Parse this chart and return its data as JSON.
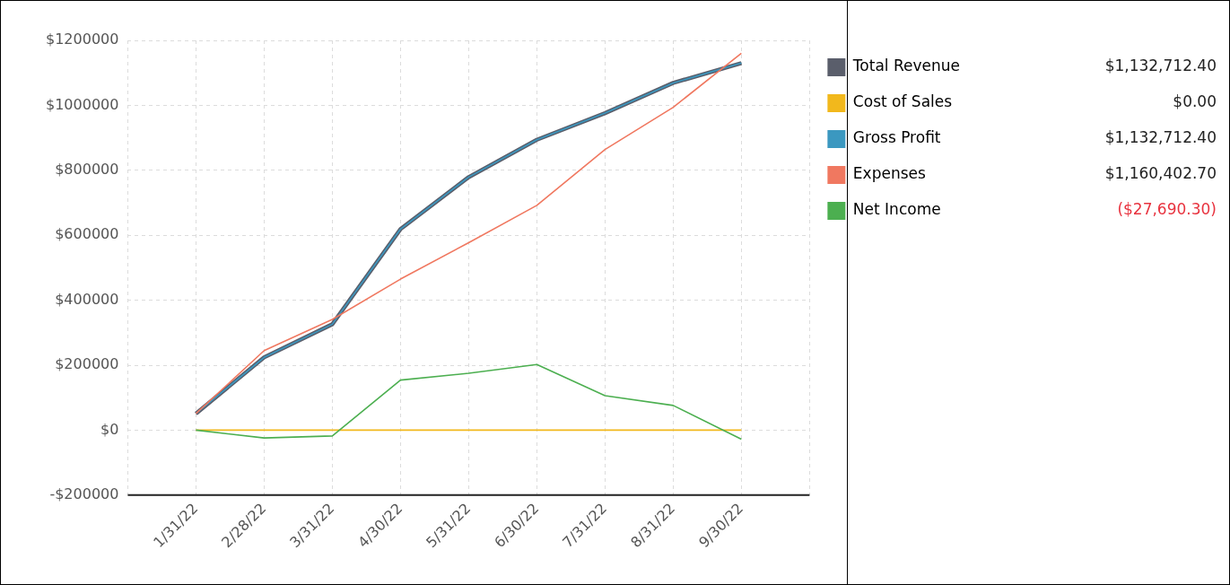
{
  "chart_data": {
    "type": "line",
    "categories": [
      "1/31/22",
      "2/28/22",
      "3/31/22",
      "4/30/22",
      "5/31/22",
      "6/30/22",
      "7/31/22",
      "8/31/22",
      "9/30/22"
    ],
    "series": [
      {
        "name": "Total Revenue",
        "color": "#5a5e6b",
        "values": [
          51000,
          224000,
          326000,
          619000,
          779000,
          894000,
          976000,
          1069000,
          1130000
        ]
      },
      {
        "name": "Cost of Sales",
        "color": "#f2b81c",
        "values": [
          0,
          0,
          0,
          0,
          0,
          0,
          0,
          0,
          0
        ]
      },
      {
        "name": "Gross Profit",
        "color": "#3b98c0",
        "values": [
          51000,
          224000,
          326000,
          619000,
          779000,
          894000,
          976000,
          1069000,
          1130000
        ]
      },
      {
        "name": "Expenses",
        "color": "#f07860",
        "values": [
          51000,
          245000,
          341000,
          465000,
          577000,
          692000,
          864000,
          994000,
          1160000
        ]
      },
      {
        "name": "Net Income",
        "color": "#4caf50",
        "values": [
          0,
          -24000,
          -18000,
          154000,
          175000,
          202000,
          106000,
          76000,
          -28000
        ]
      }
    ],
    "annotations": [
      "$1,132,712.40",
      "$0.00",
      "$1,132,712.40",
      "$1,160,402.70",
      "($27,690.30)"
    ],
    "ylim": [
      -200000,
      1200000
    ],
    "yticks": [
      {
        "value": -200000,
        "label": "-$200000"
      },
      {
        "value": 0,
        "label": "$0"
      },
      {
        "value": 200000,
        "label": "$200000"
      },
      {
        "value": 400000,
        "label": "$400000"
      },
      {
        "value": 600000,
        "label": "$600000"
      },
      {
        "value": 800000,
        "label": "$800000"
      },
      {
        "value": 1000000,
        "label": "$1000000"
      },
      {
        "value": 1200000,
        "label": "$1200000"
      }
    ],
    "grid": true,
    "legend": "right",
    "marker": "none",
    "line_style": "solid"
  }
}
